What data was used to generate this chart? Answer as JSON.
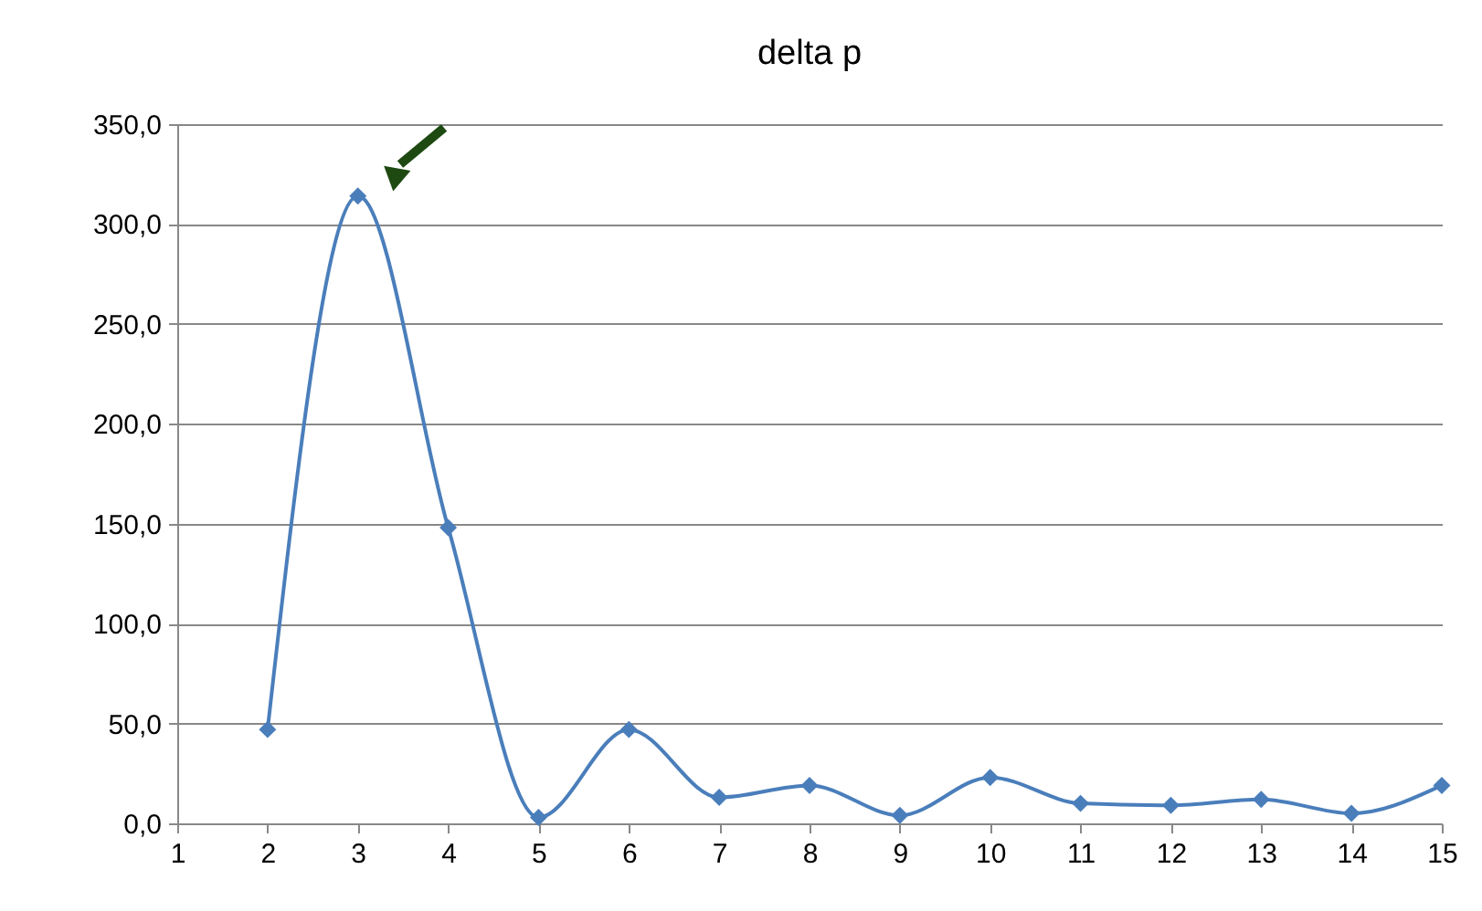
{
  "chart_data": {
    "type": "line",
    "title": "delta p",
    "x": [
      2,
      3,
      4,
      5,
      6,
      7,
      8,
      9,
      10,
      11,
      12,
      13,
      14,
      15
    ],
    "series": [
      {
        "color": "#4a7ebb",
        "values": [
          47,
          314,
          148,
          3,
          47,
          13,
          19,
          4,
          23,
          10,
          9,
          12,
          5,
          19
        ]
      }
    ],
    "xlim": [
      1,
      15
    ],
    "xticks": [
      1,
      2,
      3,
      4,
      5,
      6,
      7,
      8,
      9,
      10,
      11,
      12,
      13,
      14,
      15
    ],
    "ylim": [
      0,
      350
    ],
    "yticks": [
      {
        "value": 0,
        "label": "0,0"
      },
      {
        "value": 50,
        "label": "50,0"
      },
      {
        "value": 100,
        "label": "100,0"
      },
      {
        "value": 150,
        "label": "150,0"
      },
      {
        "value": 200,
        "label": "200,0"
      },
      {
        "value": 250,
        "label": "250,0"
      },
      {
        "value": 300,
        "label": "300,0"
      },
      {
        "value": 350,
        "label": "350,0"
      }
    ],
    "grid": "y",
    "marker": "diamond",
    "line_style": "solid"
  }
}
